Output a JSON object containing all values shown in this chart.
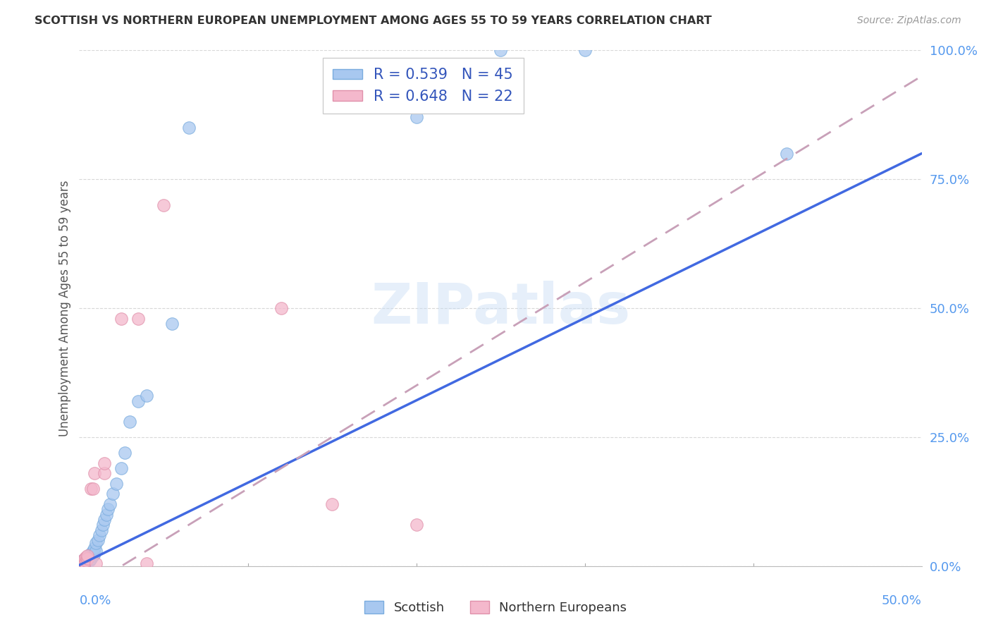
{
  "title": "SCOTTISH VS NORTHERN EUROPEAN UNEMPLOYMENT AMONG AGES 55 TO 59 YEARS CORRELATION CHART",
  "source": "Source: ZipAtlas.com",
  "ylabel": "Unemployment Among Ages 55 to 59 years",
  "ylabel_right_ticks": [
    "0.0%",
    "25.0%",
    "50.0%",
    "75.0%",
    "100.0%"
  ],
  "ylabel_right_vals": [
    0.0,
    0.25,
    0.5,
    0.75,
    1.0
  ],
  "scottish_color": "#a8c8f0",
  "northern_color": "#f4b8cc",
  "scottish_line_color": "#4169e1",
  "northern_line_color": "#c8a0b8",
  "scottish_points": [
    [
      0.001,
      0.002
    ],
    [
      0.001,
      0.005
    ],
    [
      0.002,
      0.003
    ],
    [
      0.002,
      0.007
    ],
    [
      0.002,
      0.01
    ],
    [
      0.003,
      0.005
    ],
    [
      0.003,
      0.008
    ],
    [
      0.003,
      0.012
    ],
    [
      0.004,
      0.006
    ],
    [
      0.004,
      0.01
    ],
    [
      0.004,
      0.015
    ],
    [
      0.005,
      0.008
    ],
    [
      0.005,
      0.012
    ],
    [
      0.005,
      0.018
    ],
    [
      0.006,
      0.01
    ],
    [
      0.006,
      0.02
    ],
    [
      0.007,
      0.015
    ],
    [
      0.007,
      0.025
    ],
    [
      0.008,
      0.02
    ],
    [
      0.008,
      0.03
    ],
    [
      0.009,
      0.025
    ],
    [
      0.009,
      0.035
    ],
    [
      0.01,
      0.03
    ],
    [
      0.01,
      0.045
    ],
    [
      0.011,
      0.05
    ],
    [
      0.012,
      0.06
    ],
    [
      0.013,
      0.07
    ],
    [
      0.014,
      0.08
    ],
    [
      0.015,
      0.09
    ],
    [
      0.016,
      0.1
    ],
    [
      0.017,
      0.11
    ],
    [
      0.018,
      0.12
    ],
    [
      0.02,
      0.14
    ],
    [
      0.022,
      0.16
    ],
    [
      0.025,
      0.19
    ],
    [
      0.027,
      0.22
    ],
    [
      0.03,
      0.28
    ],
    [
      0.035,
      0.32
    ],
    [
      0.04,
      0.33
    ],
    [
      0.055,
      0.47
    ],
    [
      0.065,
      0.85
    ],
    [
      0.2,
      0.87
    ],
    [
      0.25,
      1.0
    ],
    [
      0.3,
      1.0
    ],
    [
      0.42,
      0.8
    ]
  ],
  "northern_points": [
    [
      0.001,
      0.002
    ],
    [
      0.002,
      0.005
    ],
    [
      0.002,
      0.01
    ],
    [
      0.003,
      0.008
    ],
    [
      0.003,
      0.015
    ],
    [
      0.004,
      0.01
    ],
    [
      0.004,
      0.018
    ],
    [
      0.005,
      0.015
    ],
    [
      0.005,
      0.02
    ],
    [
      0.007,
      0.15
    ],
    [
      0.008,
      0.15
    ],
    [
      0.009,
      0.18
    ],
    [
      0.01,
      0.005
    ],
    [
      0.015,
      0.18
    ],
    [
      0.015,
      0.2
    ],
    [
      0.025,
      0.48
    ],
    [
      0.035,
      0.48
    ],
    [
      0.05,
      0.7
    ],
    [
      0.12,
      0.5
    ],
    [
      0.15,
      0.12
    ],
    [
      0.2,
      0.08
    ],
    [
      0.04,
      0.005
    ]
  ],
  "scottish_line": [
    0.0,
    0.002,
    0.5,
    0.8
  ],
  "northern_line": [
    0.0,
    -0.05,
    0.5,
    0.95
  ],
  "watermark": "ZIPatlas",
  "xlim": [
    0.0,
    0.5
  ],
  "ylim": [
    0.0,
    1.0
  ]
}
